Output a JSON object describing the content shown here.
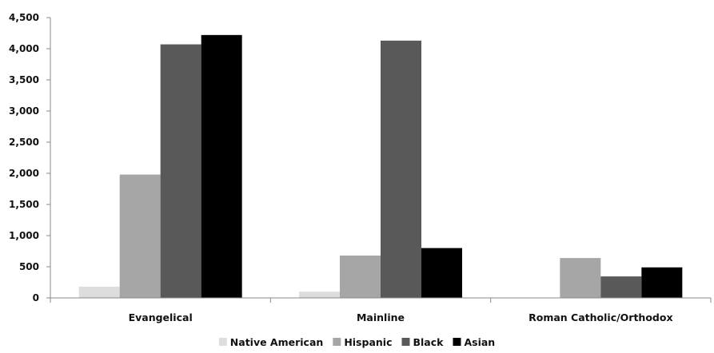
{
  "chart_data": {
    "type": "bar",
    "title": "",
    "xlabel": "",
    "ylabel": "",
    "categories": [
      "Evangelical",
      "Mainline",
      "Roman Catholic/Orthodox"
    ],
    "series": [
      {
        "name": "Native American",
        "values": [
          180,
          100,
          5
        ]
      },
      {
        "name": "Hispanic",
        "values": [
          1980,
          680,
          640
        ]
      },
      {
        "name": "Black",
        "values": [
          4070,
          4130,
          345
        ]
      },
      {
        "name": "Asian",
        "values": [
          4220,
          800,
          490
        ]
      }
    ],
    "ylim": [
      0,
      4500
    ],
    "yticks": [
      "0",
      "500",
      "1,000",
      "1,500",
      "2,000",
      "2,500",
      "3,000",
      "3,500",
      "4,000",
      "4,500"
    ],
    "grid": false,
    "legend_position": "bottom",
    "colors": [
      "#dddddd",
      "#a6a6a6",
      "#595959",
      "#000000"
    ]
  }
}
